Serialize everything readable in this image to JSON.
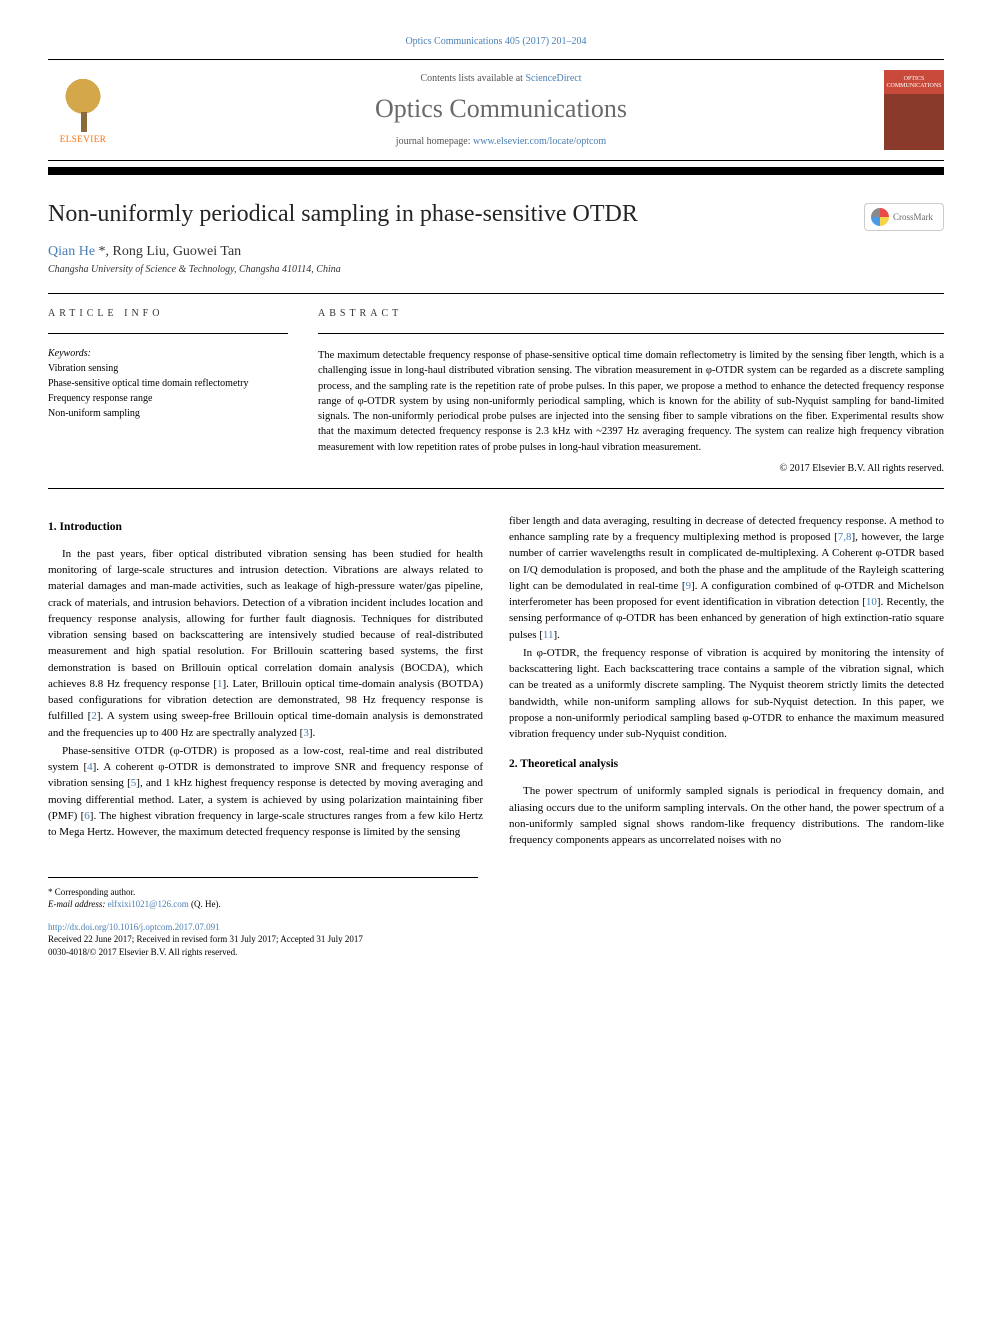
{
  "header": {
    "citation": "Optics Communications 405 (2017) 201–204",
    "contents_prefix": "Contents lists available at ",
    "contents_link": "ScienceDirect",
    "journal_name": "Optics Communications",
    "homepage_prefix": "journal homepage: ",
    "homepage_url": "www.elsevier.com/locate/optcom",
    "publisher": "ELSEVIER",
    "cover_text": "OPTICS COMMUNICATIONS"
  },
  "title": "Non-uniformly periodical sampling in phase-sensitive OTDR",
  "crossmark_label": "CrossMark",
  "authors_html": "Qian He *, Rong Liu, Guowei Tan",
  "author1": "Qian He",
  "author_star": " *",
  "author_rest": ", Rong Liu, Guowei Tan",
  "affiliation": "Changsha University of Science & Technology, Changsha 410114, China",
  "info": {
    "heading": "ARTICLE INFO",
    "keywords_label": "Keywords:",
    "keywords": [
      "Vibration sensing",
      "Phase-sensitive optical time domain reflectometry",
      "Frequency response range",
      "Non-uniform sampling"
    ]
  },
  "abstract": {
    "heading": "ABSTRACT",
    "text": "The maximum detectable frequency response of phase-sensitive optical time domain reflectometry is limited by the sensing fiber length, which is a challenging issue in long-haul distributed vibration sensing. The vibration measurement in φ-OTDR system can be regarded as a discrete sampling process, and the sampling rate is the repetition rate of probe pulses. In this paper, we propose a method to enhance the detected frequency response range of φ-OTDR system by using non-uniformly periodical sampling, which is known for the ability of sub-Nyquist sampling for band-limited signals. The non-uniformly periodical probe pulses are injected into the sensing fiber to sample vibrations on the fiber. Experimental results show that the maximum detected frequency response is 2.3 kHz with ~2397 Hz averaging frequency. The system can realize high frequency vibration measurement with low repetition rates of probe pulses in long-haul vibration measurement.",
    "copyright": "© 2017 Elsevier B.V. All rights reserved."
  },
  "sections": {
    "s1_heading": "1. Introduction",
    "s1_p1": "In the past years, fiber optical distributed vibration sensing has been studied for health monitoring of large-scale structures and intrusion detection. Vibrations are always related to material damages and man-made activities, such as leakage of high-pressure water/gas pipeline, crack of materials, and intrusion behaviors. Detection of a vibration incident includes location and frequency response analysis, allowing for further fault diagnosis. Techniques for distributed vibration sensing based on backscattering are intensively studied because of real-distributed measurement and high spatial resolution. For Brillouin scattering based systems, the first demonstration is based on Brillouin optical correlation domain analysis (BOCDA), which achieves 8.8 Hz frequency response [1]. Later, Brillouin optical time-domain analysis (BOTDA) based configurations for vibration detection are demonstrated, 98 Hz frequency response is fulfilled [2]. A system using sweep-free Brillouin optical time-domain analysis is demonstrated and the frequencies up to 400 Hz are spectrally analyzed [3].",
    "s1_p2": "Phase-sensitive OTDR (φ-OTDR) is proposed as a low-cost, real-time and real distributed system [4]. A coherent φ-OTDR is demonstrated to improve SNR and frequency response of vibration sensing [5], and 1 kHz highest frequency response is detected by moving averaging and moving differential method. Later, a system is achieved by using polarization maintaining fiber (PMF) [6]. The highest vibration frequency in large-scale structures ranges from a few kilo Hertz to Mega Hertz. However, the maximum detected frequency response is limited by the sensing",
    "s1_p3": "fiber length and data averaging, resulting in decrease of detected frequency response. A method to enhance sampling rate by a frequency multiplexing method is proposed [7,8], however, the large number of carrier wavelengths result in complicated de-multiplexing. A Coherent φ-OTDR based on I/Q demodulation is proposed, and both the phase and the amplitude of the Rayleigh scattering light can be demodulated in real-time [9]. A configuration combined of φ-OTDR and Michelson interferometer has been proposed for event identification in vibration detection [10]. Recently, the sensing performance of φ-OTDR has been enhanced by generation of high extinction-ratio square pulses [11].",
    "s1_p4": "In φ-OTDR, the frequency response of vibration is acquired by monitoring the intensity of backscattering light. Each backscattering trace contains a sample of the vibration signal, which can be treated as a uniformly discrete sampling. The Nyquist theorem strictly limits the detected bandwidth, while non-uniform sampling allows for sub-Nyquist detection. In this paper, we propose a non-uniformly periodical sampling based φ-OTDR to enhance the maximum measured vibration frequency under sub-Nyquist condition.",
    "s2_heading": "2. Theoretical analysis",
    "s2_p1": "The power spectrum of uniformly sampled signals is periodical in frequency domain, and aliasing occurs due to the uniform sampling intervals. On the other hand, the power spectrum of a non-uniformly sampled signal shows random-like frequency distributions. The random-like frequency components appears as uncorrelated noises with no"
  },
  "footer": {
    "corr_label": "* Corresponding author.",
    "email_label": "E-mail address: ",
    "email": "elfxixi1021@126.com",
    "email_suffix": " (Q. He).",
    "doi": "http://dx.doi.org/10.1016/j.optcom.2017.07.091",
    "history": "Received 22 June 2017; Received in revised form 31 July 2017; Accepted 31 July 2017",
    "issn_line": "0030-4018/© 2017 Elsevier B.V. All rights reserved."
  },
  "refs": {
    "r1": "1",
    "r2": "2",
    "r3": "3",
    "r4": "4",
    "r5": "5",
    "r6": "6",
    "r78": "7,8",
    "r9": "9",
    "r10": "10",
    "r11": "11"
  },
  "colors": {
    "link": "#4a7fb5",
    "accent_orange": "#ff6b00",
    "text": "#000000",
    "heading_gray": "#6a6a6a"
  }
}
